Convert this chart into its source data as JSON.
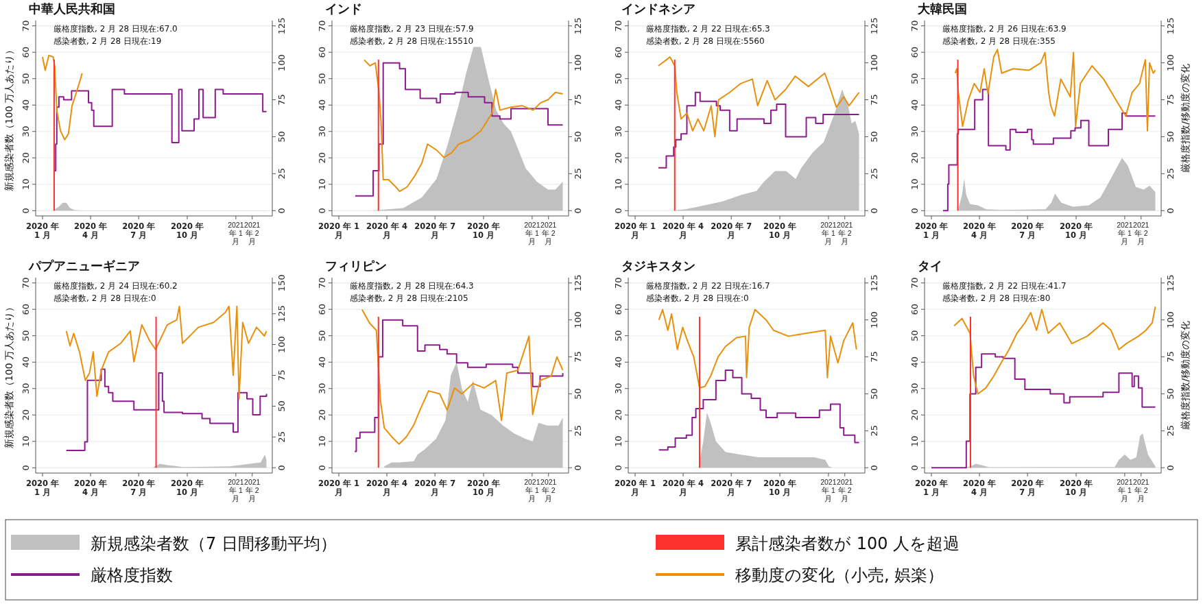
{
  "chart_data": [
    {
      "type": "line",
      "title": "中華人民共和国",
      "ylabel": "新規感染者数（100 万人あたり）",
      "legend": "bottom",
      "grid": "y",
      "annotations": [
        "厳格度指数, 2 月 28 日現在:67.0",
        "感染者数, 2 月 28 日現在:19"
      ],
      "xlim": [
        "2019-12-19",
        "2021-03-11"
      ],
      "xticks": [
        {
          "value": "2020-01-01",
          "label": "2020 年\n1 月"
        },
        {
          "value": "2020-04-01",
          "label": "2020 年\n4 月"
        },
        {
          "value": "2020-07-01",
          "label": "2020 年\n7 月"
        },
        {
          "value": "2020-10-01",
          "label": "2020 年\n10 月"
        },
        {
          "value": "2021-01-01",
          "label": "2021 年\n1 月"
        },
        {
          "value": "2021-02-01",
          "label": "2021 年\n2 月"
        }
      ],
      "ylim": [
        -2,
        72
      ],
      "yticks": [
        0,
        10,
        20,
        30,
        40,
        50,
        60,
        70
      ],
      "y2lim": [
        -3.6,
        128.6
      ],
      "y2ticks": [
        0,
        25,
        50,
        75,
        100,
        125
      ],
      "ref_lines": [
        {
          "axis": "x",
          "value": "2020-01-23",
          "label": "累計感染者数が 100 人を超過",
          "color": "#ff3030"
        }
      ],
      "series": [
        {
          "name": "新規感染者数（7 日間移動平均）",
          "type": "area",
          "color": "#c0c0c0",
          "x": [
            "2020-01-20",
            "2020-02-01",
            "2020-02-08",
            "2020-02-15",
            "2020-02-22",
            "2020-03-01",
            "2020-03-15",
            "2021-02-28"
          ],
          "values": [
            0,
            1.5,
            3,
            3,
            1,
            0.3,
            0.1,
            0.1
          ]
        },
        {
          "name": "厳格度指数",
          "type": "step",
          "axis": "y2",
          "color": "#8e1b8e",
          "x": [
            "2020-01-23",
            "2020-01-26",
            "2020-01-28",
            "2020-02-01",
            "2020-02-10",
            "2020-02-25",
            "2020-03-28",
            "2020-04-03",
            "2020-04-07",
            "2020-05-12",
            "2020-06-04",
            "2020-09-02",
            "2020-09-15",
            "2020-09-21",
            "2020-10-14",
            "2020-10-23",
            "2020-10-31",
            "2020-11-23",
            "2020-12-08",
            "2021-02-21",
            "2021-02-28"
          ],
          "values": [
            27,
            45,
            70,
            77,
            75,
            81,
            73,
            68,
            57,
            82,
            79,
            46,
            82,
            54,
            62,
            82,
            63,
            82,
            79,
            67,
            67
          ]
        },
        {
          "name": "移動度の変化（小売, 娯楽）",
          "type": "line",
          "axis": "y2",
          "color": "#e8900c",
          "x": [
            "2020-01-01",
            "2020-01-06",
            "2020-01-13",
            "2020-01-21",
            "2020-01-24",
            "2020-01-28",
            "2020-02-04",
            "2020-02-12",
            "2020-02-19",
            "2020-02-26",
            "2020-03-05",
            "2020-03-12",
            "2020-03-16"
          ],
          "values": [
            104,
            95,
            105,
            104,
            98,
            68,
            54,
            48,
            52,
            71,
            80,
            88,
            93
          ]
        }
      ]
    },
    {
      "type": "line",
      "title": "インド",
      "grid": "y",
      "annotations": [
        "厳格度指数, 2 月 23 日現在:57.9",
        "感染者数, 2 月 28 日現在:15510"
      ],
      "xlim": [
        "2019-12-19",
        "2021-03-11"
      ],
      "xticks": [
        {
          "value": "2020-01-01",
          "label": "2020 年 1\n月"
        },
        {
          "value": "2020-04-01",
          "label": "2020 年 4\n月"
        },
        {
          "value": "2020-07-01",
          "label": "2020 年 7\n月"
        },
        {
          "value": "2020-10-01",
          "label": "2020 年\n10 月"
        },
        {
          "value": "2021-01-01",
          "label": "2021 年 1\n月"
        },
        {
          "value": "2021-02-01",
          "label": "2021 年 2\n月"
        }
      ],
      "ylim": [
        -2,
        72
      ],
      "yticks": [
        0,
        10,
        20,
        30,
        40,
        50,
        60,
        70
      ],
      "y2lim": [
        -3.6,
        128.6
      ],
      "y2ticks": [
        0,
        25,
        50,
        75,
        100,
        125
      ],
      "ref_lines": [
        {
          "axis": "x",
          "value": "2020-03-16",
          "color": "#ff3030"
        }
      ],
      "series": [
        {
          "type": "area",
          "color": "#c0c0c0",
          "x": [
            "2020-03-01",
            "2020-05-02",
            "2020-06-06",
            "2020-07-04",
            "2020-07-25",
            "2020-08-15",
            "2020-08-29",
            "2020-09-12",
            "2020-09-26",
            "2020-10-10",
            "2020-10-25",
            "2020-11-08",
            "2020-11-22",
            "2020-12-02",
            "2020-12-20",
            "2021-01-10",
            "2021-01-31",
            "2021-02-14",
            "2021-02-28"
          ],
          "values": [
            0,
            1,
            5,
            12,
            25,
            40,
            52,
            62,
            62,
            50,
            38,
            33,
            30,
            25,
            16,
            11,
            8,
            8,
            11
          ]
        },
        {
          "type": "step",
          "axis": "y2",
          "color": "#8e1b8e",
          "x": [
            "2020-02-01",
            "2020-03-06",
            "2020-03-17",
            "2020-03-25",
            "2020-04-25",
            "2020-05-06",
            "2020-06-03",
            "2020-07-04",
            "2020-07-11",
            "2020-08-08",
            "2020-09-02",
            "2020-10-03",
            "2020-10-17",
            "2020-11-01",
            "2020-11-22",
            "2021-01-31",
            "2021-02-28"
          ],
          "values": [
            10,
            27,
            45,
            100,
            96,
            82,
            76,
            73,
            79,
            80,
            77,
            73,
            64,
            62,
            69,
            58,
            58
          ]
        },
        {
          "type": "line",
          "axis": "y2",
          "color": "#e8900c",
          "x": [
            "2020-02-18",
            "2020-02-29",
            "2020-03-10",
            "2020-03-14",
            "2020-03-17",
            "2020-03-21",
            "2020-03-25",
            "2020-04-04",
            "2020-04-18",
            "2020-04-25",
            "2020-05-09",
            "2020-05-23",
            "2020-06-06",
            "2020-06-17",
            "2020-07-04",
            "2020-07-18",
            "2020-08-01",
            "2020-08-15",
            "2020-09-05",
            "2020-09-26",
            "2020-10-17",
            "2020-10-24",
            "2020-11-01",
            "2020-11-22",
            "2020-12-13",
            "2021-01-03",
            "2021-01-17",
            "2021-01-31",
            "2021-02-14",
            "2021-02-28"
          ],
          "values": [
            102,
            98,
            100,
            89,
            80,
            60,
            21,
            21,
            16,
            13,
            16,
            23,
            32,
            45,
            41,
            36,
            39,
            45,
            48,
            54,
            66,
            82,
            68,
            70,
            71,
            68,
            73,
            75,
            80,
            79
          ]
        }
      ]
    },
    {
      "type": "line",
      "title": "インドネシア",
      "grid": "y",
      "annotations": [
        "厳格度指数, 2 月 22 日現在:65.3",
        "感染者数, 2 月 28 日現在:5560"
      ],
      "xlim": [
        "2019-12-19",
        "2021-03-11"
      ],
      "xticks": [
        {
          "value": "2020-01-01",
          "label": "2020 年 1\n月"
        },
        {
          "value": "2020-04-01",
          "label": "2020 年 4\n月"
        },
        {
          "value": "2020-07-01",
          "label": "2020 年 7\n月"
        },
        {
          "value": "2020-10-01",
          "label": "2020 年\n10 月"
        },
        {
          "value": "2021-01-01",
          "label": "2021 年 1\n月"
        },
        {
          "value": "2021-02-01",
          "label": "2021 年 2\n月"
        }
      ],
      "ylim": [
        -2,
        72
      ],
      "yticks": [
        0,
        10,
        20,
        30,
        40,
        50,
        60,
        70
      ],
      "y2lim": [
        -3.6,
        128.6
      ],
      "y2ticks": [
        0,
        25,
        50,
        75,
        100,
        125
      ],
      "ref_lines": [
        {
          "axis": "x",
          "value": "2020-03-16",
          "color": "#ff3030"
        }
      ],
      "series": [
        {
          "type": "area",
          "color": "#c0c0c0",
          "x": [
            "2020-03-08",
            "2020-04-05",
            "2020-05-11",
            "2020-06-15",
            "2020-07-20",
            "2020-08-18",
            "2020-09-01",
            "2020-09-22",
            "2020-10-13",
            "2020-10-31",
            "2020-11-10",
            "2020-12-02",
            "2020-12-23",
            "2021-01-13",
            "2021-01-27",
            "2021-02-07",
            "2021-02-14",
            "2021-02-21",
            "2021-02-28"
          ],
          "values": [
            0,
            0.5,
            2,
            3.5,
            6,
            7.5,
            11,
            15,
            15,
            12,
            16,
            22,
            26,
            37,
            46,
            40,
            33,
            34,
            29
          ]
        },
        {
          "type": "step",
          "axis": "y2",
          "color": "#8e1b8e",
          "x": [
            "2020-02-14",
            "2020-02-29",
            "2020-03-14",
            "2020-03-18",
            "2020-03-28",
            "2020-04-08",
            "2020-04-24",
            "2020-05-03",
            "2020-06-03",
            "2020-06-10",
            "2020-06-28",
            "2020-07-12",
            "2020-09-01",
            "2020-09-14",
            "2020-09-25",
            "2020-10-12",
            "2020-11-20",
            "2020-12-08",
            "2020-12-22",
            "2021-02-28"
          ],
          "values": [
            29,
            37,
            43,
            48,
            52,
            71,
            80,
            74,
            71,
            68,
            54,
            62,
            59,
            68,
            72,
            50,
            63,
            59,
            65,
            65
          ]
        },
        {
          "type": "line",
          "axis": "y2",
          "color": "#e8900c",
          "x": [
            "2020-02-14",
            "2020-02-29",
            "2020-03-07",
            "2020-03-16",
            "2020-03-20",
            "2020-03-28",
            "2020-04-08",
            "2020-04-19",
            "2020-04-29",
            "2020-05-10",
            "2020-05-24",
            "2020-05-31",
            "2020-06-07",
            "2020-06-28",
            "2020-07-19",
            "2020-08-10",
            "2020-08-20",
            "2020-09-07",
            "2020-09-22",
            "2020-10-12",
            "2020-10-30",
            "2020-11-24",
            "2020-12-25",
            "2021-01-05",
            "2021-01-16",
            "2021-01-30",
            "2021-02-09",
            "2021-02-28"
          ],
          "values": [
            98,
            102,
            104,
            98,
            80,
            62,
            66,
            54,
            62,
            54,
            71,
            50,
            75,
            80,
            86,
            89,
            71,
            88,
            75,
            82,
            91,
            84,
            93,
            82,
            70,
            77,
            71,
            80
          ]
        }
      ]
    },
    {
      "type": "line",
      "title": "大韓民国",
      "y2label": "厳格度指数/移動度の変化",
      "grid": "y",
      "annotations": [
        "厳格度指数, 2 月 26 日現在:63.9",
        "感染者数, 2 月 28 日現在:355"
      ],
      "xlim": [
        "2019-12-19",
        "2021-03-11"
      ],
      "xticks": [
        {
          "value": "2020-01-01",
          "label": "2020 年\n1 月"
        },
        {
          "value": "2020-04-01",
          "label": "2020 年\n4 月"
        },
        {
          "value": "2020-07-01",
          "label": "2020 年\n7 月"
        },
        {
          "value": "2020-10-01",
          "label": "2020 年\n10 月"
        },
        {
          "value": "2021-01-01",
          "label": "2021 年\n1 月"
        },
        {
          "value": "2021-02-01",
          "label": "2021 年\n2 月"
        }
      ],
      "ylim": [
        -2,
        72
      ],
      "yticks": [
        0,
        10,
        20,
        30,
        40,
        50,
        60,
        70
      ],
      "y2lim": [
        -3.6,
        128.6
      ],
      "y2ticks": [
        0,
        25,
        50,
        75,
        100,
        125
      ],
      "ref_lines": [
        {
          "axis": "x",
          "value": "2020-02-20",
          "color": "#ff3030"
        }
      ],
      "series": [
        {
          "type": "area",
          "color": "#c0c0c0",
          "x": [
            "2020-02-20",
            "2020-02-28",
            "2020-03-03",
            "2020-03-07",
            "2020-03-14",
            "2020-03-29",
            "2020-04-14",
            "2020-05-14",
            "2020-08-04",
            "2020-08-15",
            "2020-08-22",
            "2020-09-03",
            "2020-09-25",
            "2020-10-25",
            "2020-11-16",
            "2020-12-08",
            "2020-12-27",
            "2021-01-07",
            "2021-01-22",
            "2021-02-06",
            "2021-02-17",
            "2021-02-28"
          ],
          "values": [
            0,
            6,
            12,
            6,
            2.5,
            2,
            0.5,
            0.3,
            0.5,
            3,
            6.5,
            3,
            1.5,
            2,
            5,
            13,
            20,
            17,
            9,
            8,
            9.5,
            7
          ]
        },
        {
          "type": "step",
          "axis": "y2",
          "color": "#8e1b8e",
          "x": [
            "2020-01-23",
            "2020-02-01",
            "2020-02-03",
            "2020-02-19",
            "2020-02-21",
            "2020-03-23",
            "2020-04-07",
            "2020-04-18",
            "2020-05-21",
            "2020-05-29",
            "2020-06-09",
            "2020-07-01",
            "2020-07-09",
            "2020-07-12",
            "2020-08-19",
            "2020-09-21",
            "2020-09-29",
            "2020-10-10",
            "2020-10-25",
            "2020-12-01",
            "2020-12-27",
            "2021-01-03",
            "2021-02-28"
          ],
          "values": [
            0,
            18,
            31,
            52,
            55,
            75,
            82,
            44,
            41,
            55,
            53,
            55,
            48,
            45,
            49,
            54,
            56,
            61,
            44,
            55,
            66,
            64,
            64
          ]
        },
        {
          "type": "line",
          "axis": "y2",
          "color": "#e8900c",
          "x": [
            "2020-02-15",
            "2020-02-18",
            "2020-02-21",
            "2020-02-29",
            "2020-03-11",
            "2020-03-22",
            "2020-04-02",
            "2020-04-10",
            "2020-04-17",
            "2020-04-28",
            "2020-05-05",
            "2020-05-13",
            "2020-06-04",
            "2020-07-04",
            "2020-07-26",
            "2020-08-03",
            "2020-08-10",
            "2020-08-14",
            "2020-08-21",
            "2020-09-02",
            "2020-09-20",
            "2020-09-26",
            "2020-09-30",
            "2020-10-09",
            "2020-10-31",
            "2020-11-22",
            "2020-12-07",
            "2020-12-22",
            "2021-01-03",
            "2021-01-15",
            "2021-01-29",
            "2021-02-09",
            "2021-02-13",
            "2021-02-17",
            "2021-02-24",
            "2021-02-28"
          ],
          "values": [
            93,
            96,
            80,
            57,
            75,
            86,
            80,
            96,
            79,
            104,
            109,
            93,
            96,
            95,
            100,
            107,
            80,
            71,
            64,
            89,
            77,
            107,
            57,
            86,
            98,
            89,
            80,
            71,
            64,
            80,
            86,
            102,
            54,
            100,
            93,
            95
          ]
        }
      ]
    },
    {
      "type": "line",
      "title": "パプアニューギニア",
      "ylabel": "新規感染者数（100 万人あたり）",
      "grid": "y",
      "annotations": [
        "厳格度指数, 2 月 24 日現在:60.2",
        "感染者数, 2 月 28 日現在:0"
      ],
      "xlim": [
        "2019-12-19",
        "2021-03-11"
      ],
      "xticks": [
        {
          "value": "2020-01-01",
          "label": "2020 年\n1 月"
        },
        {
          "value": "2020-04-01",
          "label": "2020 年\n4 月"
        },
        {
          "value": "2020-07-01",
          "label": "2020 年\n7 月"
        },
        {
          "value": "2020-10-01",
          "label": "2020 年\n10 月"
        },
        {
          "value": "2021-01-01",
          "label": "2021 年\n1 月"
        },
        {
          "value": "2021-02-01",
          "label": "2021 年\n2 月"
        }
      ],
      "ylim": [
        -2,
        72
      ],
      "yticks": [
        0,
        10,
        20,
        30,
        40,
        50,
        60,
        70
      ],
      "y2lim": [
        -4.3,
        154.3
      ],
      "y2ticks": [
        0,
        25,
        50,
        75,
        100,
        125,
        150
      ],
      "ref_lines": [
        {
          "axis": "x",
          "value": "2020-08-03",
          "color": "#ff3030"
        }
      ],
      "series": [
        {
          "type": "area",
          "color": "#c0c0c0",
          "x": [
            "2020-03-01",
            "2020-07-27",
            "2020-08-10",
            "2020-08-25",
            "2020-09-23",
            "2020-12-20",
            "2021-02-17",
            "2021-02-25",
            "2021-02-28"
          ],
          "values": [
            0,
            0,
            1.5,
            1,
            0.3,
            0.5,
            2,
            5,
            3
          ]
        },
        {
          "type": "step",
          "axis": "y2",
          "color": "#8e1b8e",
          "x": [
            "2020-02-15",
            "2020-03-19",
            "2020-03-21",
            "2020-03-26",
            "2020-04-21",
            "2020-04-28",
            "2020-05-05",
            "2020-05-13",
            "2020-06-22",
            "2020-08-02",
            "2020-08-08",
            "2020-08-15",
            "2020-08-18",
            "2020-09-22",
            "2020-10-29",
            "2020-11-13",
            "2020-12-27",
            "2021-01-05",
            "2021-01-22",
            "2021-02-02",
            "2021-02-16",
            "2021-02-28"
          ],
          "values": [
            14,
            14,
            21,
            71,
            80,
            66,
            61,
            54,
            47,
            47,
            77,
            54,
            45,
            44,
            40,
            36,
            29,
            61,
            56,
            43,
            58,
            60
          ]
        },
        {
          "type": "line",
          "axis": "y2",
          "color": "#e8900c",
          "x": [
            "2020-02-15",
            "2020-02-22",
            "2020-02-29",
            "2020-03-11",
            "2020-03-22",
            "2020-03-30",
            "2020-04-06",
            "2020-04-13",
            "2020-04-21",
            "2020-05-05",
            "2020-05-28",
            "2020-06-15",
            "2020-06-22",
            "2020-07-07",
            "2020-07-22",
            "2020-08-02",
            "2020-08-24",
            "2020-09-11",
            "2020-09-16",
            "2020-09-22",
            "2020-10-22",
            "2020-11-20",
            "2020-12-12",
            "2020-12-19",
            "2020-12-27",
            "2021-01-03",
            "2021-01-07",
            "2021-01-14",
            "2021-01-25",
            "2021-02-09",
            "2021-02-24",
            "2021-02-28"
          ],
          "values": [
            111,
            99,
            109,
            94,
            71,
            77,
            94,
            58,
            79,
            94,
            101,
            111,
            86,
            116,
            103,
            96,
            116,
            120,
            131,
            101,
            114,
            118,
            126,
            131,
            75,
            131,
            56,
            118,
            101,
            114,
            107,
            111
          ]
        }
      ]
    },
    {
      "type": "line",
      "title": "フィリピン",
      "grid": "y",
      "annotations": [
        "厳格度指数, 2 月 28 日現在:64.3",
        "感染者数, 2 月 28 日現在:2105"
      ],
      "xlim": [
        "2019-12-19",
        "2021-03-11"
      ],
      "xticks": [
        {
          "value": "2020-01-01",
          "label": "2020 年 1\n月"
        },
        {
          "value": "2020-04-01",
          "label": "2020 年 4\n月"
        },
        {
          "value": "2020-07-01",
          "label": "2020 年 7\n月"
        },
        {
          "value": "2020-10-01",
          "label": "2020 年\n10 月"
        },
        {
          "value": "2021-01-01",
          "label": "2021 年 1\n月"
        },
        {
          "value": "2021-02-01",
          "label": "2021 年 2\n月"
        }
      ],
      "ylim": [
        -2,
        72
      ],
      "yticks": [
        0,
        10,
        20,
        30,
        40,
        50,
        60,
        70
      ],
      "y2lim": [
        -3.6,
        128.6
      ],
      "y2ticks": [
        0,
        25,
        50,
        75,
        100,
        125
      ],
      "ref_lines": [
        {
          "axis": "x",
          "value": "2020-03-16",
          "color": "#ff3030"
        }
      ],
      "series": [
        {
          "type": "area",
          "color": "#c0c0c0",
          "x": [
            "2020-03-27",
            "2020-04-10",
            "2020-04-24",
            "2020-05-22",
            "2020-05-29",
            "2020-06-12",
            "2020-07-03",
            "2020-07-21",
            "2020-07-31",
            "2020-08-11",
            "2020-08-21",
            "2020-09-01",
            "2020-09-11",
            "2020-09-25",
            "2020-10-16",
            "2020-11-07",
            "2020-11-28",
            "2020-12-19",
            "2021-01-02",
            "2021-01-13",
            "2021-01-30",
            "2021-02-20",
            "2021-02-28"
          ],
          "values": [
            0.5,
            2,
            2,
            2.5,
            5,
            7,
            11,
            18,
            35,
            40,
            30,
            25,
            33,
            22,
            20,
            16,
            13,
            11,
            10,
            17,
            16,
            16,
            19
          ]
        },
        {
          "type": "step",
          "axis": "y2",
          "color": "#8e1b8e",
          "x": [
            "2020-01-31",
            "2020-02-03",
            "2020-02-10",
            "2020-03-09",
            "2020-03-16",
            "2020-03-24",
            "2020-05-01",
            "2020-05-29",
            "2020-06-12",
            "2020-07-10",
            "2020-07-24",
            "2020-08-11",
            "2020-09-01",
            "2020-10-06",
            "2020-11-25",
            "2020-12-05",
            "2021-01-02",
            "2021-01-16",
            "2021-02-28"
          ],
          "values": [
            11,
            20,
            24,
            34,
            75,
            100,
            96,
            79,
            83,
            80,
            77,
            71,
            68,
            70,
            68,
            64,
            55,
            62,
            64
          ]
        },
        {
          "type": "line",
          "axis": "y2",
          "color": "#e8900c",
          "x": [
            "2020-02-14",
            "2020-02-28",
            "2020-03-12",
            "2020-03-20",
            "2020-03-27",
            "2020-04-10",
            "2020-04-24",
            "2020-05-08",
            "2020-05-22",
            "2020-06-05",
            "2020-06-19",
            "2020-07-10",
            "2020-07-24",
            "2020-08-07",
            "2020-08-21",
            "2020-09-11",
            "2020-10-02",
            "2020-10-24",
            "2020-11-04",
            "2020-11-14",
            "2020-12-05",
            "2020-12-26",
            "2021-01-02",
            "2021-01-16",
            "2021-02-06",
            "2021-02-17",
            "2021-02-28"
          ],
          "values": [
            107,
            98,
            93,
            45,
            27,
            21,
            16,
            21,
            29,
            41,
            52,
            50,
            39,
            54,
            50,
            57,
            54,
            59,
            32,
            64,
            66,
            89,
            36,
            59,
            62,
            75,
            66
          ]
        }
      ]
    },
    {
      "type": "line",
      "title": "タジキスタン",
      "grid": "y",
      "annotations": [
        "厳格度指数, 2 月 22 日現在:16.7",
        "感染者数, 2 月 28 日現在:0"
      ],
      "xlim": [
        "2019-12-19",
        "2021-03-11"
      ],
      "xticks": [
        {
          "value": "2020-01-01",
          "label": "2020 年 1\n月"
        },
        {
          "value": "2020-04-01",
          "label": "2020 年 4\n月"
        },
        {
          "value": "2020-07-01",
          "label": "2020 年 7\n月"
        },
        {
          "value": "2020-10-01",
          "label": "2020 年\n10 月"
        },
        {
          "value": "2021-01-01",
          "label": "2021 年 1\n月"
        },
        {
          "value": "2021-02-01",
          "label": "2021 年 2\n月"
        }
      ],
      "ylim": [
        -2,
        72
      ],
      "yticks": [
        0,
        10,
        20,
        30,
        40,
        50,
        60,
        70
      ],
      "y2lim": [
        -3.6,
        128.6
      ],
      "y2ticks": [
        0,
        25,
        50,
        75,
        100,
        125
      ],
      "ref_lines": [
        {
          "axis": "x",
          "value": "2020-05-02",
          "color": "#ff3030"
        }
      ],
      "series": [
        {
          "type": "area",
          "color": "#c0c0c0",
          "x": [
            "2020-04-30",
            "2020-05-09",
            "2020-05-16",
            "2020-05-23",
            "2020-06-02",
            "2020-06-20",
            "2020-07-18",
            "2020-08-22",
            "2020-09-26",
            "2020-12-05",
            "2020-12-26",
            "2021-01-02",
            "2021-01-09"
          ],
          "values": [
            0,
            10,
            21,
            17,
            10,
            6,
            5,
            4,
            4,
            4,
            3,
            0.5,
            0
          ]
        },
        {
          "type": "step",
          "axis": "y2",
          "color": "#8e1b8e",
          "x": [
            "2020-02-15",
            "2020-03-03",
            "2020-03-17",
            "2020-04-07",
            "2020-04-18",
            "2020-04-25",
            "2020-05-09",
            "2020-06-02",
            "2020-06-20",
            "2020-07-04",
            "2020-07-21",
            "2020-08-08",
            "2020-08-25",
            "2020-09-05",
            "2020-09-26",
            "2020-10-31",
            "2020-12-15",
            "2021-01-05",
            "2021-01-23",
            "2021-01-30",
            "2021-02-20",
            "2021-02-28"
          ],
          "values": [
            12,
            14,
            20,
            22,
            34,
            40,
            46,
            59,
            66,
            61,
            50,
            47,
            39,
            34,
            37,
            34,
            39,
            43,
            27,
            22,
            17,
            17
          ]
        },
        {
          "type": "line",
          "axis": "y2",
          "color": "#e8900c",
          "x": [
            "2020-02-15",
            "2020-02-22",
            "2020-03-03",
            "2020-03-10",
            "2020-03-21",
            "2020-03-31",
            "2020-04-11",
            "2020-04-21",
            "2020-05-02",
            "2020-05-12",
            "2020-05-23",
            "2020-06-06",
            "2020-06-20",
            "2020-07-11",
            "2020-07-28",
            "2020-07-30",
            "2020-08-04",
            "2020-08-15",
            "2020-09-05",
            "2020-09-19",
            "2020-10-17",
            "2020-11-21",
            "2020-12-26",
            "2020-12-30",
            "2021-01-05",
            "2021-01-19",
            "2021-01-30",
            "2021-02-16",
            "2021-02-23"
          ],
          "values": [
            100,
            107,
            93,
            104,
            80,
            95,
            84,
            75,
            54,
            55,
            62,
            75,
            82,
            88,
            89,
            61,
            95,
            107,
            100,
            93,
            89,
            91,
            93,
            61,
            89,
            71,
            86,
            98,
            80
          ]
        }
      ]
    },
    {
      "type": "line",
      "title": "タイ",
      "y2label": "厳格度指数/移動度の変化",
      "grid": "y",
      "annotations": [
        "厳格度指数, 2 月 22 日現在:41.7",
        "感染者数, 2 月 28 日現在:80"
      ],
      "xlim": [
        "2019-12-19",
        "2021-03-11"
      ],
      "xticks": [
        {
          "value": "2020-01-01",
          "label": "2020 年\n1 月"
        },
        {
          "value": "2020-04-01",
          "label": "2020 年\n4 月"
        },
        {
          "value": "2020-07-01",
          "label": "2020 年\n7 月"
        },
        {
          "value": "2020-10-01",
          "label": "2020 年\n10 月"
        },
        {
          "value": "2021-01-01",
          "label": "2021 年\n1 月"
        },
        {
          "value": "2021-02-01",
          "label": "2021 年\n2 月"
        }
      ],
      "ylim": [
        -2,
        72
      ],
      "yticks": [
        0,
        10,
        20,
        30,
        40,
        50,
        60,
        70
      ],
      "y2lim": [
        -3.6,
        128.6
      ],
      "y2ticks": [
        0,
        25,
        50,
        75,
        100,
        125
      ],
      "ref_lines": [
        {
          "axis": "x",
          "value": "2020-03-15",
          "color": "#ff3030"
        }
      ],
      "series": [
        {
          "type": "area",
          "color": "#c0c0c0",
          "x": [
            "2020-03-01",
            "2020-03-15",
            "2020-03-25",
            "2020-04-05",
            "2020-04-20",
            "2020-12-13",
            "2020-12-21",
            "2021-01-01",
            "2021-01-12",
            "2021-01-23",
            "2021-01-30",
            "2021-02-04",
            "2021-02-14",
            "2021-02-28"
          ],
          "values": [
            0,
            0.5,
            1.5,
            1,
            0.2,
            0.3,
            3,
            5,
            3,
            4,
            12,
            13,
            5,
            0.5
          ]
        },
        {
          "type": "step",
          "axis": "y2",
          "color": "#8e1b8e",
          "x": [
            "2020-01-01",
            "2020-03-03",
            "2020-03-07",
            "2020-03-14",
            "2020-03-25",
            "2020-04-05",
            "2020-05-01",
            "2020-05-16",
            "2020-06-07",
            "2020-06-26",
            "2020-08-13",
            "2020-09-08",
            "2020-09-19",
            "2020-11-21",
            "2020-12-21",
            "2021-01-15",
            "2021-01-19",
            "2021-01-27",
            "2021-02-03",
            "2021-02-28"
          ],
          "values": [
            0,
            0,
            18,
            50,
            68,
            77,
            75,
            74,
            60,
            53,
            50,
            44,
            48,
            51,
            64,
            55,
            62,
            54,
            41,
            41
          ]
        },
        {
          "type": "line",
          "axis": "y2",
          "color": "#e8900c",
          "x": [
            "2020-02-13",
            "2020-02-28",
            "2020-03-14",
            "2020-03-21",
            "2020-03-29",
            "2020-04-13",
            "2020-04-28",
            "2020-05-12",
            "2020-05-27",
            "2020-06-11",
            "2020-06-26",
            "2020-07-07",
            "2020-07-18",
            "2020-07-28",
            "2020-08-09",
            "2020-08-31",
            "2020-09-23",
            "2020-10-22",
            "2020-11-21",
            "2020-12-06",
            "2020-12-21",
            "2021-01-04",
            "2021-01-27",
            "2021-02-10",
            "2021-02-22",
            "2021-02-28"
          ],
          "values": [
            96,
            101,
            91,
            62,
            50,
            54,
            62,
            71,
            80,
            91,
            98,
            105,
            93,
            107,
            91,
            98,
            84,
            89,
            98,
            93,
            80,
            84,
            89,
            93,
            98,
            109
          ]
        }
      ]
    }
  ]
}
